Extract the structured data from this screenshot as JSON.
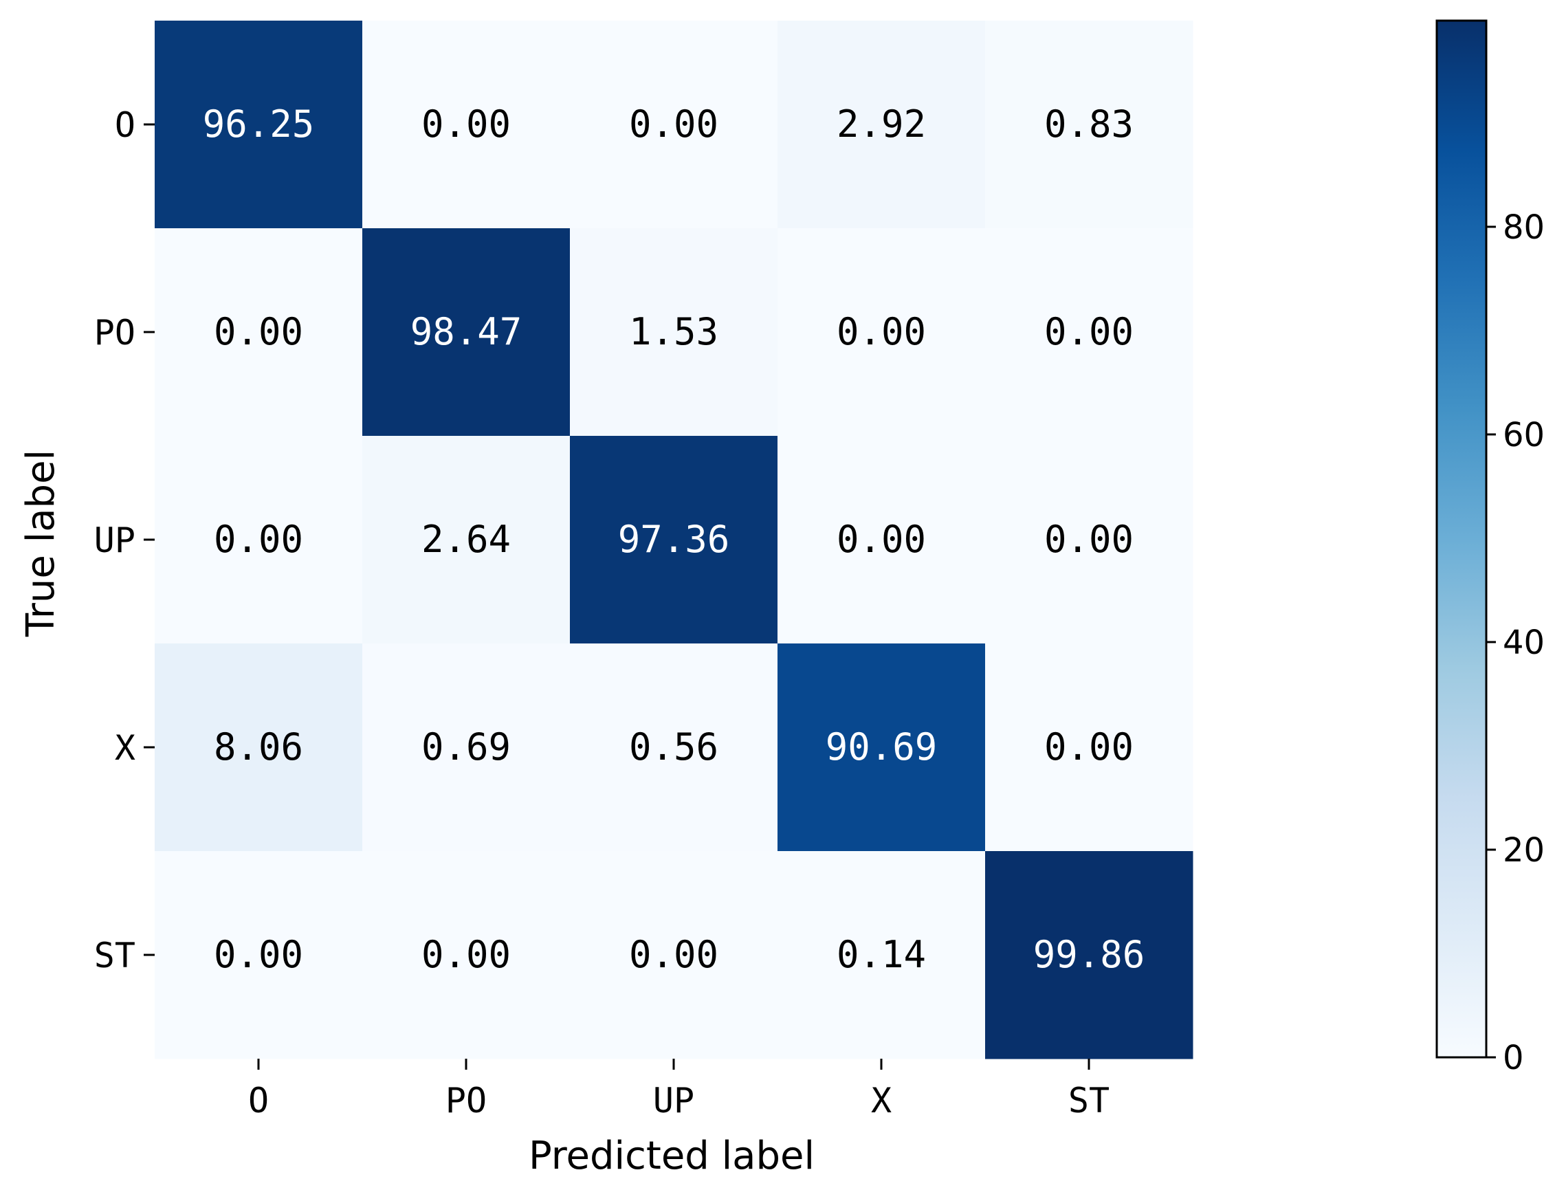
{
  "chart_data": {
    "type": "heatmap",
    "title": "",
    "xlabel": "Predicted label",
    "ylabel": "True label",
    "x_categories": [
      "O",
      "PO",
      "UP",
      "X",
      "ST"
    ],
    "y_categories": [
      "O",
      "PO",
      "UP",
      "X",
      "ST"
    ],
    "values": [
      [
        96.25,
        0.0,
        0.0,
        2.92,
        0.83
      ],
      [
        0.0,
        98.47,
        1.53,
        0.0,
        0.0
      ],
      [
        0.0,
        2.64,
        97.36,
        0.0,
        0.0
      ],
      [
        8.06,
        0.69,
        0.56,
        90.69,
        0.0
      ],
      [
        0.0,
        0.0,
        0.0,
        0.14,
        99.86
      ]
    ],
    "value_labels": [
      [
        "96.25",
        "0.00",
        "0.00",
        "2.92",
        "0.83"
      ],
      [
        "0.00",
        "98.47",
        "1.53",
        "0.00",
        "0.00"
      ],
      [
        "0.00",
        "2.64",
        "97.36",
        "0.00",
        "0.00"
      ],
      [
        "8.06",
        "0.69",
        "0.56",
        "90.69",
        "0.00"
      ],
      [
        "0.00",
        "0.00",
        "0.00",
        "0.14",
        "99.86"
      ]
    ],
    "colormap": "Blues",
    "colorbar": {
      "range": [
        0,
        99.86
      ],
      "ticks": [
        0,
        20,
        40,
        60,
        80
      ],
      "tick_labels": [
        "0",
        "20",
        "40",
        "60",
        "80"
      ]
    },
    "grid": false
  }
}
